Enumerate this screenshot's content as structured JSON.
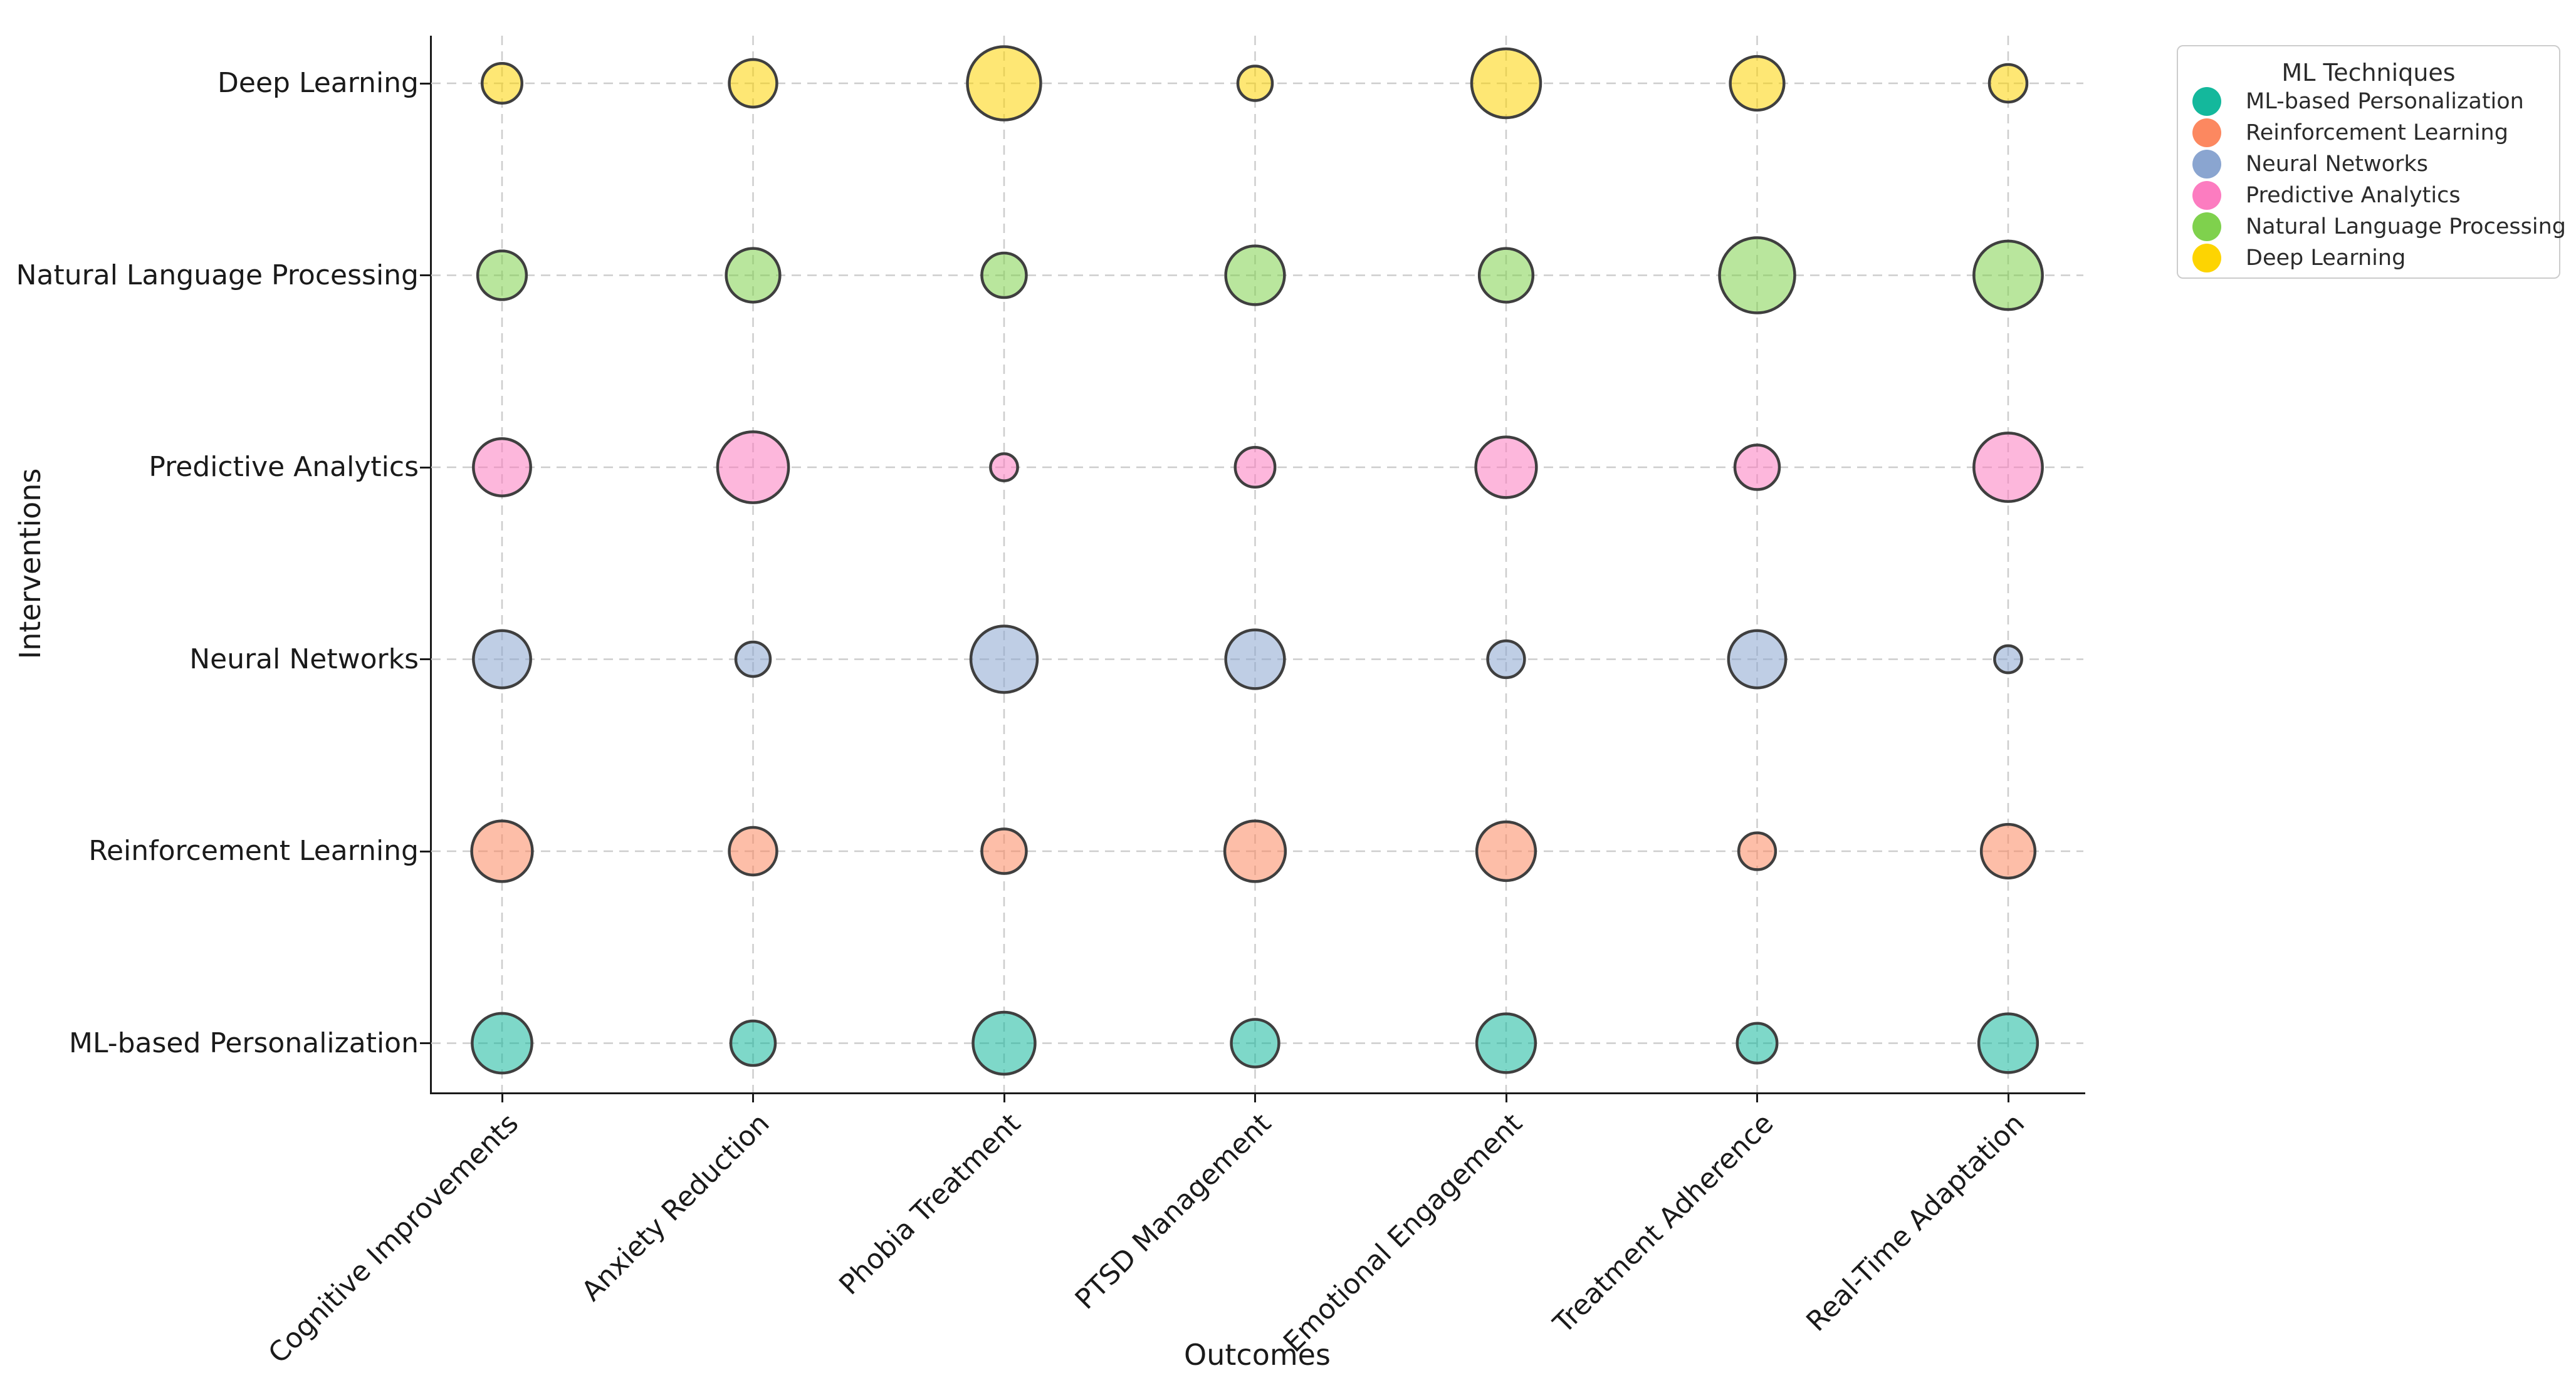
{
  "chart_data": {
    "type": "scatter",
    "subtype": "bubble-matrix",
    "title": "",
    "xlabel": "Outcomes",
    "ylabel": "Interventions",
    "x_categories": [
      "Cognitive Improvements",
      "Anxiety Reduction",
      "Phobia Treatment",
      "PTSD Management",
      "Emotional Engagement",
      "Treatment Adherence",
      "Real-Time Adaptation"
    ],
    "y_categories_top_to_bottom": [
      "Deep Learning",
      "Natural Language Processing",
      "Predictive Analytics",
      "Neural Networks",
      "Reinforcement Learning",
      "ML-based Personalization"
    ],
    "grid": true,
    "grid_style": "dashed",
    "size_encoding": "bubble area proportional to value (relative magnitude, approx 0-100 scale)",
    "legend": {
      "title": "ML Techniques",
      "position": "upper right"
    },
    "series": [
      {
        "name": "ML-based Personalization",
        "color": "#14b89c",
        "values": [
          63,
          35,
          68,
          40,
          61,
          28,
          61
        ]
      },
      {
        "name": "Reinforcement Learning",
        "color": "#fc8860",
        "values": [
          65,
          40,
          35,
          65,
          61,
          24,
          51
        ]
      },
      {
        "name": "Neural Networks",
        "color": "#8aa5d0",
        "values": [
          58,
          21,
          78,
          61,
          24,
          58,
          13
        ]
      },
      {
        "name": "Predictive Analytics",
        "color": "#fc7cc0",
        "values": [
          58,
          89,
          13,
          28,
          65,
          35,
          83
        ]
      },
      {
        "name": "Natural Language Processing",
        "color": "#7fd14d",
        "values": [
          42,
          51,
          35,
          61,
          51,
          100,
          83
        ]
      },
      {
        "name": "Deep Learning",
        "color": "#fdd402",
        "values": [
          28,
          40,
          95,
          21,
          84,
          51,
          25
        ]
      }
    ],
    "colors": {
      "bubble_edge": "#3f3f3f",
      "gridline": "#cdcdcd",
      "spine": "#1a1a1a",
      "legend_border": "#cccccc"
    }
  }
}
